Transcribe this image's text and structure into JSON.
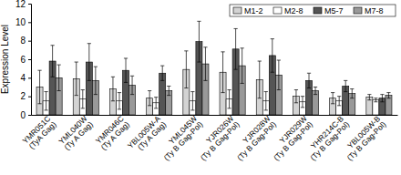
{
  "chart_data": {
    "type": "bar",
    "y_label": "Expression Level",
    "categories": [
      "YMR051C (TyA Gag)",
      "YML040W (Ty A Gag)",
      "YMR046C (Ty A Gag)",
      "YBL005W-A (Ty A Gag)",
      "YML045W (Ty B Gag-Pol)",
      "YJR026W (Ty B Gag-Pol)",
      "YJR028W (Ty B Gag-Pol)",
      "YJR029W (Ty B Gag-Pol)",
      "YHR214C-B (Ty B Gag-Pol)",
      "YBL005W-B (Ty B Gag-Pol)"
    ],
    "series": [
      {
        "name": "M1-2",
        "color": "#d3d3d3",
        "values": [
          3.0,
          3.9,
          2.8,
          1.8,
          4.9,
          4.6,
          3.8,
          2.0,
          1.8,
          1.9
        ],
        "errors": [
          1.8,
          1.8,
          1.3,
          0.8,
          2.0,
          2.2,
          2.0,
          0.7,
          0.6,
          0.3
        ]
      },
      {
        "name": "M2-8",
        "color": "#ffffff",
        "values": [
          1.5,
          1.7,
          1.5,
          1.3,
          1.5,
          1.7,
          1.5,
          1.4,
          1.5,
          1.6
        ],
        "errors": [
          1.0,
          1.0,
          0.9,
          0.6,
          1.0,
          1.0,
          1.0,
          0.6,
          0.5,
          0.2
        ]
      },
      {
        "name": "M5-7",
        "color": "#555555",
        "values": [
          5.8,
          5.7,
          4.8,
          4.5,
          7.9,
          7.1,
          6.4,
          3.7,
          3.1,
          1.8
        ],
        "errors": [
          1.7,
          2.0,
          1.3,
          0.8,
          2.2,
          2.2,
          1.8,
          0.8,
          0.6,
          0.4
        ]
      },
      {
        "name": "M7-8",
        "color": "#999999",
        "values": [
          4.0,
          3.7,
          3.2,
          2.6,
          5.5,
          5.3,
          4.3,
          2.6,
          2.3,
          2.1
        ],
        "errors": [
          1.4,
          1.5,
          1.0,
          0.5,
          1.8,
          1.9,
          1.6,
          0.4,
          0.5,
          0.3
        ]
      }
    ],
    "ylim": [
      0,
      12
    ],
    "yticks": [
      0,
      2,
      4,
      6,
      8,
      10,
      12
    ],
    "grid": false,
    "legend": "upper right"
  }
}
